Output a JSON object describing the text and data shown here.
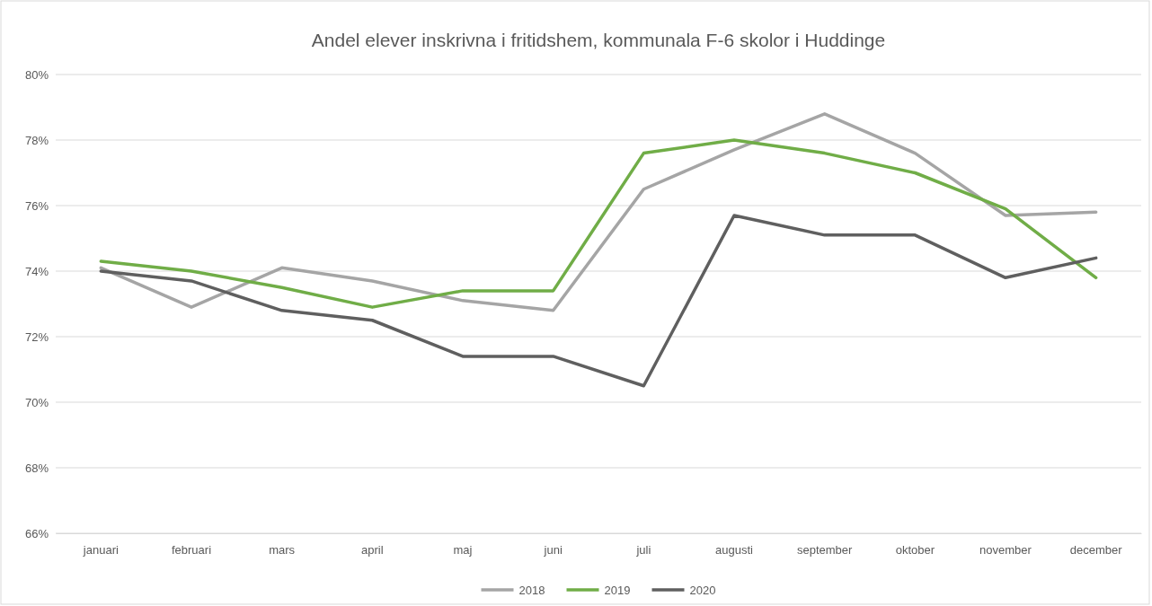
{
  "chart_data": {
    "type": "line",
    "title": "Andel elever inskrivna i fritidshem, kommunala F-6 skolor i Huddinge",
    "categories": [
      "januari",
      "februari",
      "mars",
      "april",
      "maj",
      "juni",
      "juli",
      "augusti",
      "september",
      "oktober",
      "november",
      "december"
    ],
    "series": [
      {
        "name": "2018",
        "color": "#a5a5a5",
        "values": [
          74.1,
          72.9,
          74.1,
          73.7,
          73.1,
          72.8,
          76.5,
          77.7,
          78.8,
          77.6,
          75.7,
          75.8
        ]
      },
      {
        "name": "2019",
        "color": "#70ad47",
        "values": [
          74.3,
          74.0,
          73.5,
          72.9,
          73.4,
          73.4,
          77.6,
          78.0,
          77.6,
          77.0,
          75.9,
          73.8
        ]
      },
      {
        "name": "2020",
        "color": "#5f5f5f",
        "values": [
          74.0,
          73.7,
          72.8,
          72.5,
          71.4,
          71.4,
          70.5,
          75.7,
          75.1,
          75.1,
          73.8,
          74.4
        ]
      }
    ],
    "ylim": [
      66,
      80
    ],
    "yticks": [
      {
        "value": 66,
        "label": "66%"
      },
      {
        "value": 68,
        "label": "68%"
      },
      {
        "value": 70,
        "label": "70%"
      },
      {
        "value": 72,
        "label": "72%"
      },
      {
        "value": 74,
        "label": "74%"
      },
      {
        "value": 76,
        "label": "76%"
      },
      {
        "value": 78,
        "label": "78%"
      },
      {
        "value": 80,
        "label": "80%"
      }
    ],
    "grid": "y",
    "legend": "bottom",
    "marker": "none",
    "line_style": "solid"
  }
}
